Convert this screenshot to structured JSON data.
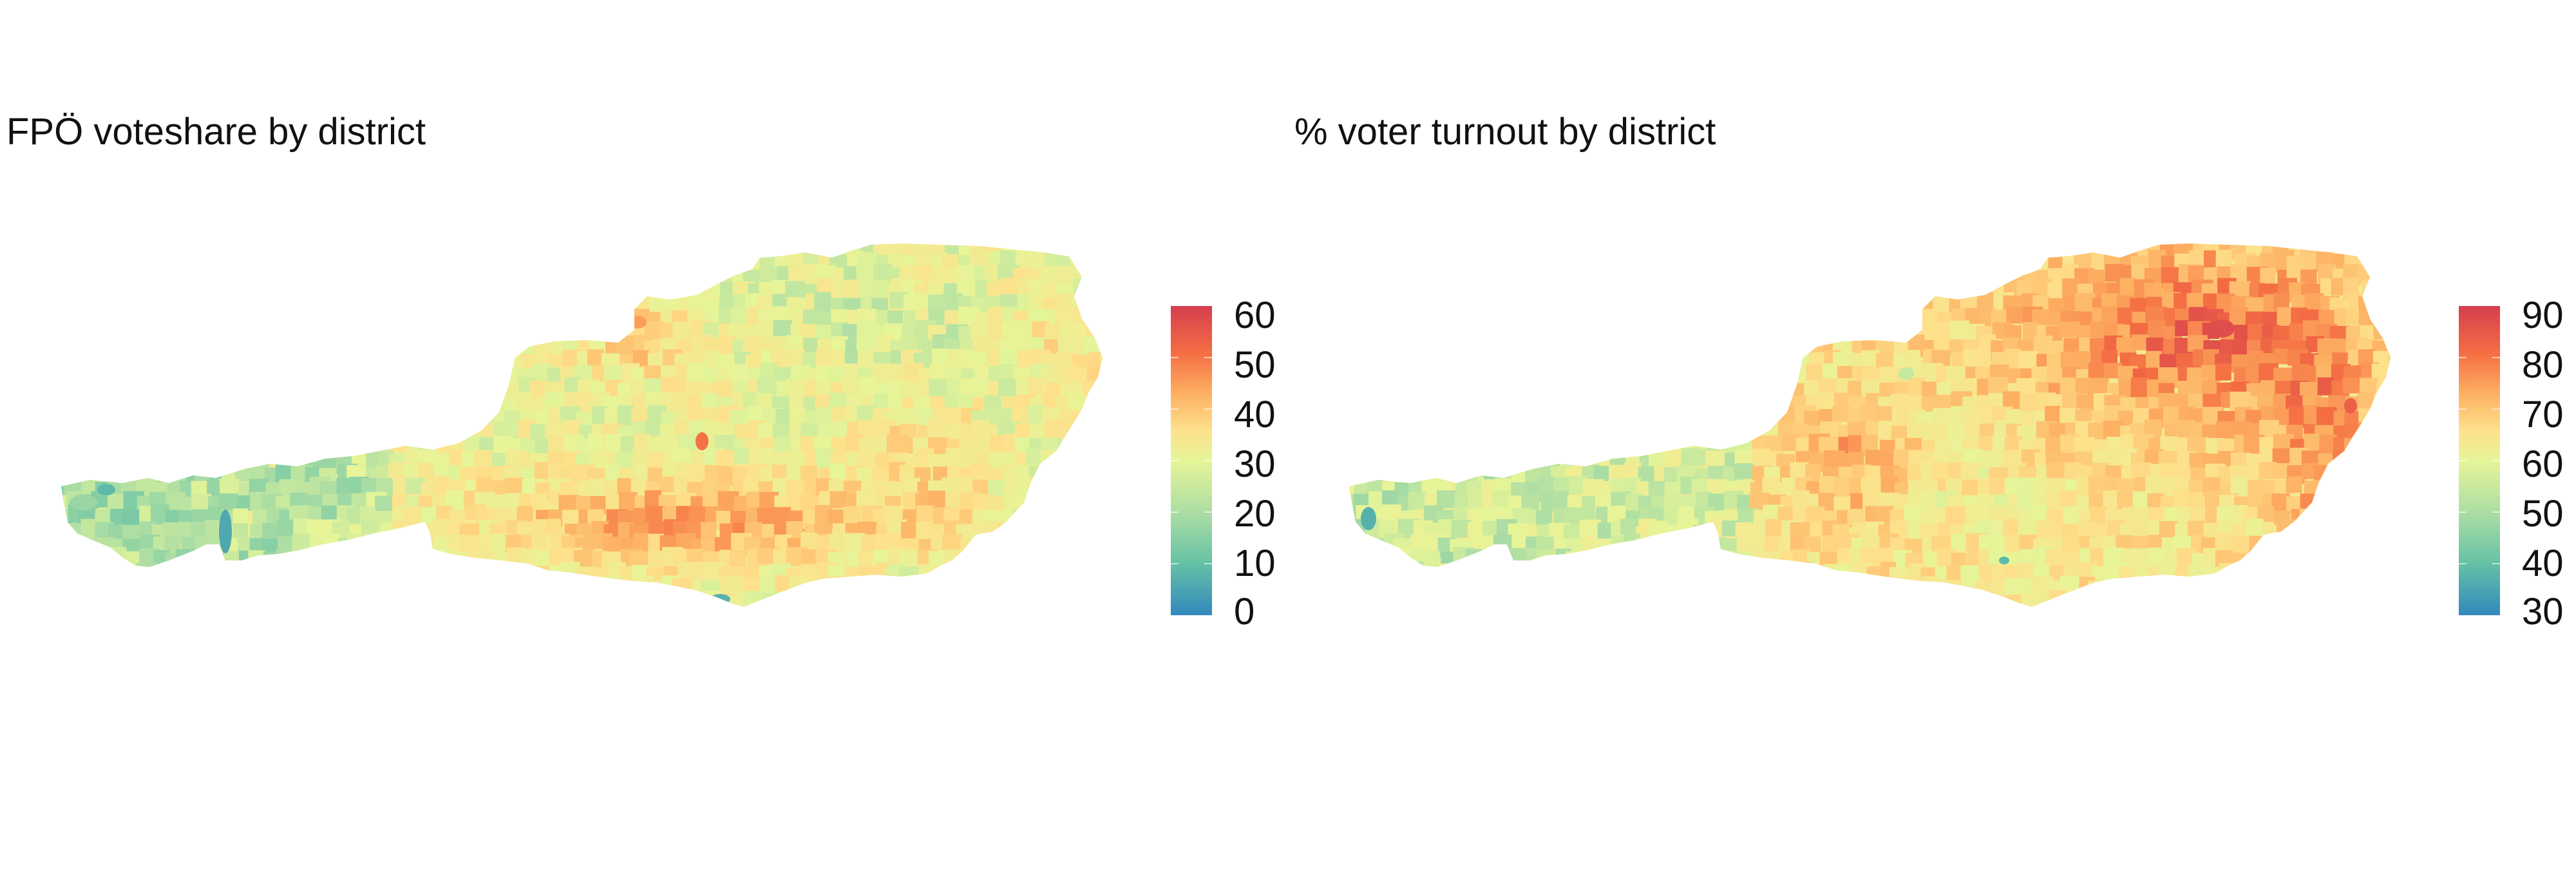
{
  "maps": [
    {
      "id": "fpo",
      "title": "FPÖ voteshare by district",
      "legend": {
        "min": 0,
        "max": 60,
        "ticks": [
          "60",
          "50",
          "40",
          "30",
          "20",
          "10",
          "0"
        ]
      },
      "colors": [
        "#3288bd",
        "#66c2a5",
        "#abdda4",
        "#e6f598",
        "#fee08b",
        "#fdae61",
        "#f46d43",
        "#d53e4f"
      ]
    },
    {
      "id": "turnout",
      "title": "% voter turnout by district",
      "legend": {
        "min": 30,
        "max": 90,
        "ticks": [
          "90",
          "80",
          "70",
          "60",
          "50",
          "40",
          "30"
        ]
      },
      "colors": [
        "#3288bd",
        "#66c2a5",
        "#abdda4",
        "#e6f598",
        "#fee08b",
        "#fdae61",
        "#f46d43",
        "#d53e4f"
      ]
    }
  ]
}
